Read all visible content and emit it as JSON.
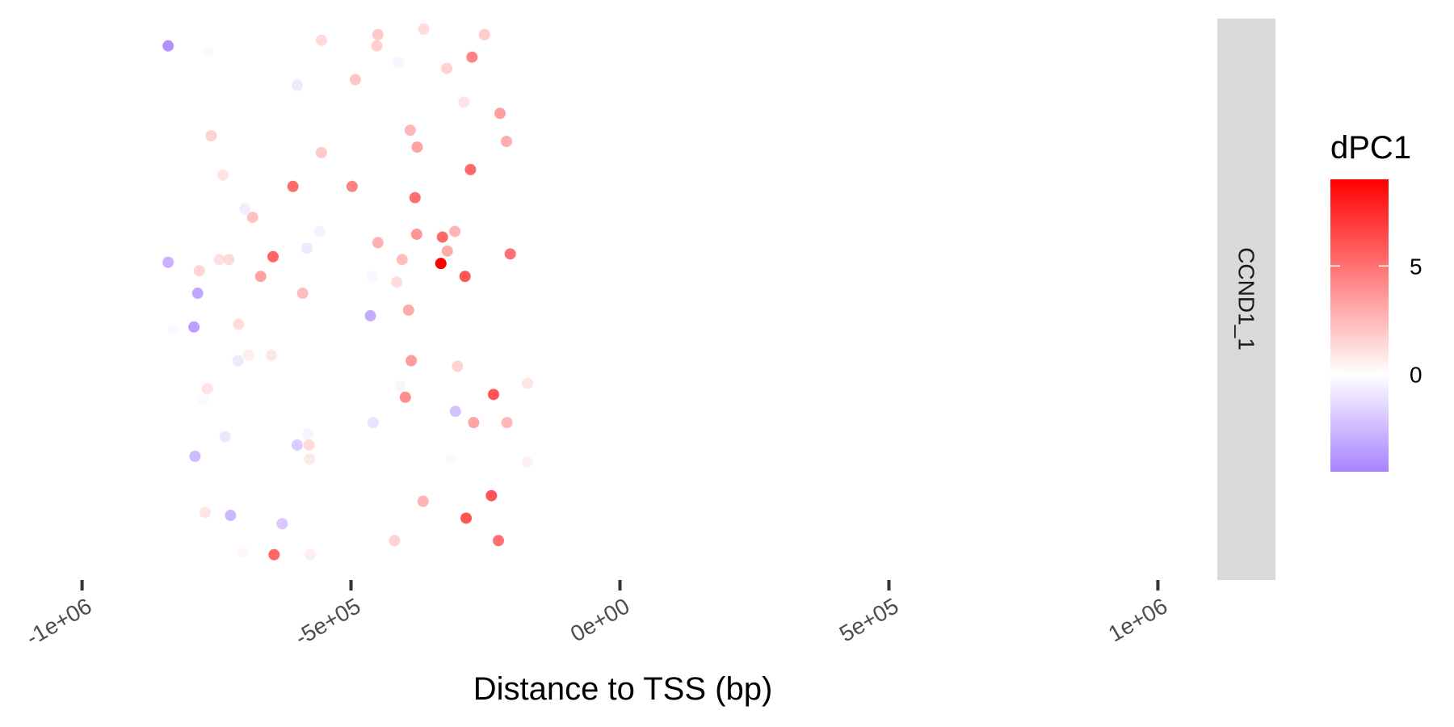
{
  "chart_data": {
    "type": "scatter",
    "facet_label": "CCND1_1",
    "xlabel": "Distance to TSS (bp)",
    "ylabel": "",
    "xlim": [
      -1100000,
      1100000
    ],
    "x_ticks": [
      {
        "value": -1000000,
        "label": "-1e+06"
      },
      {
        "value": -500000,
        "label": "-5e+05"
      },
      {
        "value": 0,
        "label": "0e+00"
      },
      {
        "value": 500000,
        "label": "5e+05"
      },
      {
        "value": 1000000,
        "label": "1e+06"
      }
    ],
    "y_axis_shown": false,
    "grid": false,
    "color_scale": {
      "name": "dPC1",
      "low_color": "#a783ff",
      "mid_color": "#ffffff",
      "high_color": "#ff0000",
      "min": -4.5,
      "mid": 0,
      "max": 9,
      "ticks": [
        {
          "value": 0,
          "label": "0"
        },
        {
          "value": 5,
          "label": "5"
        }
      ]
    },
    "legend_position": "right",
    "points": [
      {
        "x": -840000,
        "y": 0.95,
        "dpc1": -4.0
      },
      {
        "x": -767000,
        "y": 0.94,
        "dpc1": 0.2
      },
      {
        "x": -555000,
        "y": 0.96,
        "dpc1": 1.3
      },
      {
        "x": -450000,
        "y": 0.97,
        "dpc1": 1.9
      },
      {
        "x": -365000,
        "y": 0.98,
        "dpc1": 1.2
      },
      {
        "x": -252000,
        "y": 0.97,
        "dpc1": 1.8
      },
      {
        "x": -452000,
        "y": 0.95,
        "dpc1": 1.7
      },
      {
        "x": -275000,
        "y": 0.93,
        "dpc1": 4.3
      },
      {
        "x": -412000,
        "y": 0.92,
        "dpc1": -0.4
      },
      {
        "x": -322000,
        "y": 0.91,
        "dpc1": 1.6
      },
      {
        "x": -492000,
        "y": 0.89,
        "dpc1": 2.0
      },
      {
        "x": -600000,
        "y": 0.88,
        "dpc1": -0.8
      },
      {
        "x": -290000,
        "y": 0.85,
        "dpc1": 1.0
      },
      {
        "x": -223000,
        "y": 0.83,
        "dpc1": 3.4
      },
      {
        "x": -390000,
        "y": 0.8,
        "dpc1": 2.5
      },
      {
        "x": -760000,
        "y": 0.79,
        "dpc1": 1.6
      },
      {
        "x": -377000,
        "y": 0.77,
        "dpc1": 3.3
      },
      {
        "x": -211000,
        "y": 0.78,
        "dpc1": 2.9
      },
      {
        "x": -555000,
        "y": 0.76,
        "dpc1": 1.9
      },
      {
        "x": -278000,
        "y": 0.73,
        "dpc1": 5.3
      },
      {
        "x": -738000,
        "y": 0.72,
        "dpc1": 1.0
      },
      {
        "x": -608000,
        "y": 0.7,
        "dpc1": 5.2
      },
      {
        "x": -498000,
        "y": 0.7,
        "dpc1": 4.4
      },
      {
        "x": -381000,
        "y": 0.68,
        "dpc1": 5.1
      },
      {
        "x": -697000,
        "y": 0.66,
        "dpc1": -0.6
      },
      {
        "x": -683000,
        "y": 0.645,
        "dpc1": 2.2
      },
      {
        "x": -559000,
        "y": 0.62,
        "dpc1": -0.5
      },
      {
        "x": -378000,
        "y": 0.615,
        "dpc1": 3.7
      },
      {
        "x": -307000,
        "y": 0.62,
        "dpc1": 2.6
      },
      {
        "x": -330000,
        "y": 0.61,
        "dpc1": 5.3
      },
      {
        "x": -450000,
        "y": 0.6,
        "dpc1": 2.8
      },
      {
        "x": -582000,
        "y": 0.59,
        "dpc1": -0.8
      },
      {
        "x": -321000,
        "y": 0.585,
        "dpc1": 3.0
      },
      {
        "x": -204000,
        "y": 0.58,
        "dpc1": 5.0
      },
      {
        "x": -645000,
        "y": 0.575,
        "dpc1": 5.5
      },
      {
        "x": -745000,
        "y": 0.57,
        "dpc1": 1.1
      },
      {
        "x": -727000,
        "y": 0.57,
        "dpc1": 1.3
      },
      {
        "x": -405000,
        "y": 0.57,
        "dpc1": 2.3
      },
      {
        "x": -333000,
        "y": 0.563,
        "dpc1": 9.0
      },
      {
        "x": -840000,
        "y": 0.565,
        "dpc1": -2.8
      },
      {
        "x": -782000,
        "y": 0.55,
        "dpc1": 1.5
      },
      {
        "x": -668000,
        "y": 0.54,
        "dpc1": 3.3
      },
      {
        "x": -288000,
        "y": 0.54,
        "dpc1": 6.0
      },
      {
        "x": -460000,
        "y": 0.54,
        "dpc1": -0.3
      },
      {
        "x": -415000,
        "y": 0.53,
        "dpc1": 1.2
      },
      {
        "x": -785000,
        "y": 0.51,
        "dpc1": -3.2
      },
      {
        "x": -590000,
        "y": 0.51,
        "dpc1": 2.3
      },
      {
        "x": -393000,
        "y": 0.48,
        "dpc1": 3.0
      },
      {
        "x": -464000,
        "y": 0.47,
        "dpc1": -3.0
      },
      {
        "x": -709000,
        "y": 0.455,
        "dpc1": 1.2
      },
      {
        "x": -792000,
        "y": 0.45,
        "dpc1": -3.5
      },
      {
        "x": -831000,
        "y": 0.445,
        "dpc1": -0.2
      },
      {
        "x": -648000,
        "y": 0.4,
        "dpc1": 0.9
      },
      {
        "x": -710000,
        "y": 0.39,
        "dpc1": -0.8
      },
      {
        "x": -690000,
        "y": 0.4,
        "dpc1": 0.6
      },
      {
        "x": -388000,
        "y": 0.39,
        "dpc1": 3.5
      },
      {
        "x": -302000,
        "y": 0.38,
        "dpc1": 1.6
      },
      {
        "x": -172000,
        "y": 0.35,
        "dpc1": 0.9
      },
      {
        "x": -235000,
        "y": 0.33,
        "dpc1": 6.0
      },
      {
        "x": -399000,
        "y": 0.325,
        "dpc1": 4.0
      },
      {
        "x": -767000,
        "y": 0.34,
        "dpc1": 1.0
      },
      {
        "x": -408000,
        "y": 0.345,
        "dpc1": -0.4
      },
      {
        "x": -775000,
        "y": 0.32,
        "dpc1": -0.2
      },
      {
        "x": -306000,
        "y": 0.3,
        "dpc1": -2.2
      },
      {
        "x": -459000,
        "y": 0.28,
        "dpc1": -1.0
      },
      {
        "x": -272000,
        "y": 0.28,
        "dpc1": 3.2
      },
      {
        "x": -210000,
        "y": 0.28,
        "dpc1": 2.5
      },
      {
        "x": -580000,
        "y": 0.26,
        "dpc1": -0.4
      },
      {
        "x": -734000,
        "y": 0.255,
        "dpc1": -0.9
      },
      {
        "x": -600000,
        "y": 0.24,
        "dpc1": -1.8
      },
      {
        "x": -578000,
        "y": 0.24,
        "dpc1": 1.3
      },
      {
        "x": -577000,
        "y": 0.215,
        "dpc1": 0.8
      },
      {
        "x": -790000,
        "y": 0.22,
        "dpc1": -2.5
      },
      {
        "x": -313000,
        "y": 0.215,
        "dpc1": 0.2
      },
      {
        "x": -172000,
        "y": 0.21,
        "dpc1": 0.5
      },
      {
        "x": -239000,
        "y": 0.15,
        "dpc1": 6.0
      },
      {
        "x": -366000,
        "y": 0.14,
        "dpc1": 2.7
      },
      {
        "x": -771000,
        "y": 0.12,
        "dpc1": 0.9
      },
      {
        "x": -724000,
        "y": 0.115,
        "dpc1": -2.6
      },
      {
        "x": -628000,
        "y": 0.1,
        "dpc1": -2.0
      },
      {
        "x": -286000,
        "y": 0.11,
        "dpc1": 6.0
      },
      {
        "x": -419000,
        "y": 0.07,
        "dpc1": 1.6
      },
      {
        "x": -226000,
        "y": 0.07,
        "dpc1": 5.0
      },
      {
        "x": -701000,
        "y": 0.05,
        "dpc1": 0.3
      },
      {
        "x": -643000,
        "y": 0.045,
        "dpc1": 5.4
      },
      {
        "x": -576000,
        "y": 0.045,
        "dpc1": 0.6
      }
    ]
  }
}
